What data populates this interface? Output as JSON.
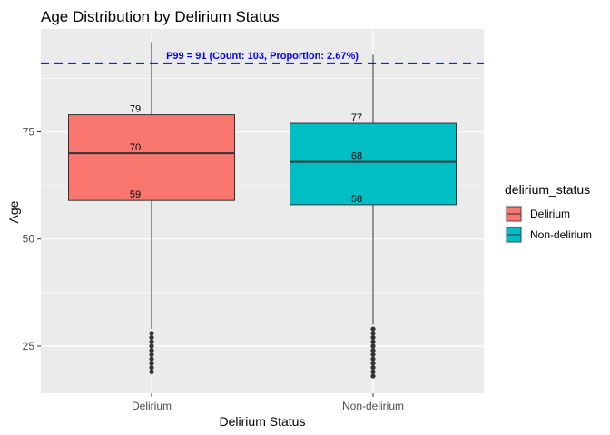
{
  "chart_data": {
    "type": "boxplot",
    "title": "Age Distribution by Delirium Status",
    "xlabel": "Delirium Status",
    "ylabel": "Age",
    "ylim": [
      14,
      99
    ],
    "yticks": [
      25,
      50,
      75
    ],
    "grid": true,
    "categories": [
      "Delirium",
      "Non-delirium"
    ],
    "series": [
      {
        "name": "Delirium",
        "color": "#F8766D",
        "whisker_low": 29,
        "q1": 59,
        "median": 70,
        "q3": 79,
        "whisker_high": 96,
        "outliers": [
          28,
          27,
          26,
          25,
          24,
          23,
          22,
          21,
          20,
          19
        ],
        "labels": [
          "79",
          "70",
          "59"
        ]
      },
      {
        "name": "Non-delirium",
        "color": "#00BFC4",
        "whisker_low": 30,
        "q1": 58,
        "median": 68,
        "q3": 77,
        "whisker_high": 93,
        "outliers": [
          29,
          28,
          27,
          26,
          25,
          24,
          23,
          22,
          21,
          20,
          19,
          18
        ],
        "labels": [
          "77",
          "68",
          "58"
        ]
      }
    ],
    "reference_line": {
      "value": 91,
      "color": "#0000ff",
      "label": "P99 = 91 (Count: 103, Proportion: 2.67%)"
    },
    "legend": {
      "title": "delirium_status",
      "position": "right"
    }
  }
}
